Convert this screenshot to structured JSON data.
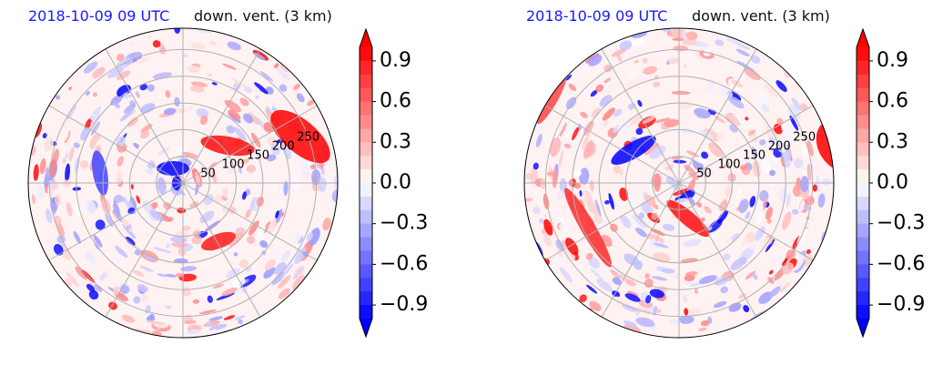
{
  "chart_data": [
    {
      "type": "heatmap",
      "projection": "polar",
      "date_label": "2018-10-09 09 UTC",
      "title": "down. vent. (3 km)",
      "colorbar": {
        "ticks": [
          "0.9",
          "0.6",
          "0.3",
          "0.0",
          "−0.3",
          "−0.6",
          "−0.9"
        ],
        "tick_values": [
          0.9,
          0.6,
          0.3,
          0.0,
          -0.3,
          -0.6,
          -0.9
        ],
        "range": [
          -1.0,
          1.0
        ],
        "extend": "both",
        "colormap": "bwr",
        "levels": 20
      },
      "radial_labels": [
        "50",
        "100",
        "150",
        "200",
        "250"
      ],
      "radial_values": [
        50,
        100,
        150,
        200,
        250
      ],
      "radial_max": 290,
      "grid": true
    },
    {
      "type": "heatmap",
      "projection": "polar",
      "date_label": "2018-10-09 09 UTC",
      "title": "down. vent. (3 km)",
      "colorbar": {
        "ticks": [
          "0.9",
          "0.6",
          "0.3",
          "0.0",
          "−0.3",
          "−0.6",
          "−0.9"
        ],
        "tick_values": [
          0.9,
          0.6,
          0.3,
          0.0,
          -0.3,
          -0.6,
          -0.9
        ],
        "range": [
          -1.0,
          1.0
        ],
        "extend": "both",
        "colormap": "bwr",
        "levels": 20
      },
      "radial_labels": [
        "50",
        "100",
        "150",
        "200",
        "250"
      ],
      "radial_values": [
        50,
        100,
        150,
        200,
        250
      ],
      "radial_max": 290,
      "grid": true
    }
  ],
  "colors": {
    "positive": "#ff0000",
    "negative": "#0000ff",
    "neutral": "#ffffff",
    "date_label": "#1a1aff"
  }
}
